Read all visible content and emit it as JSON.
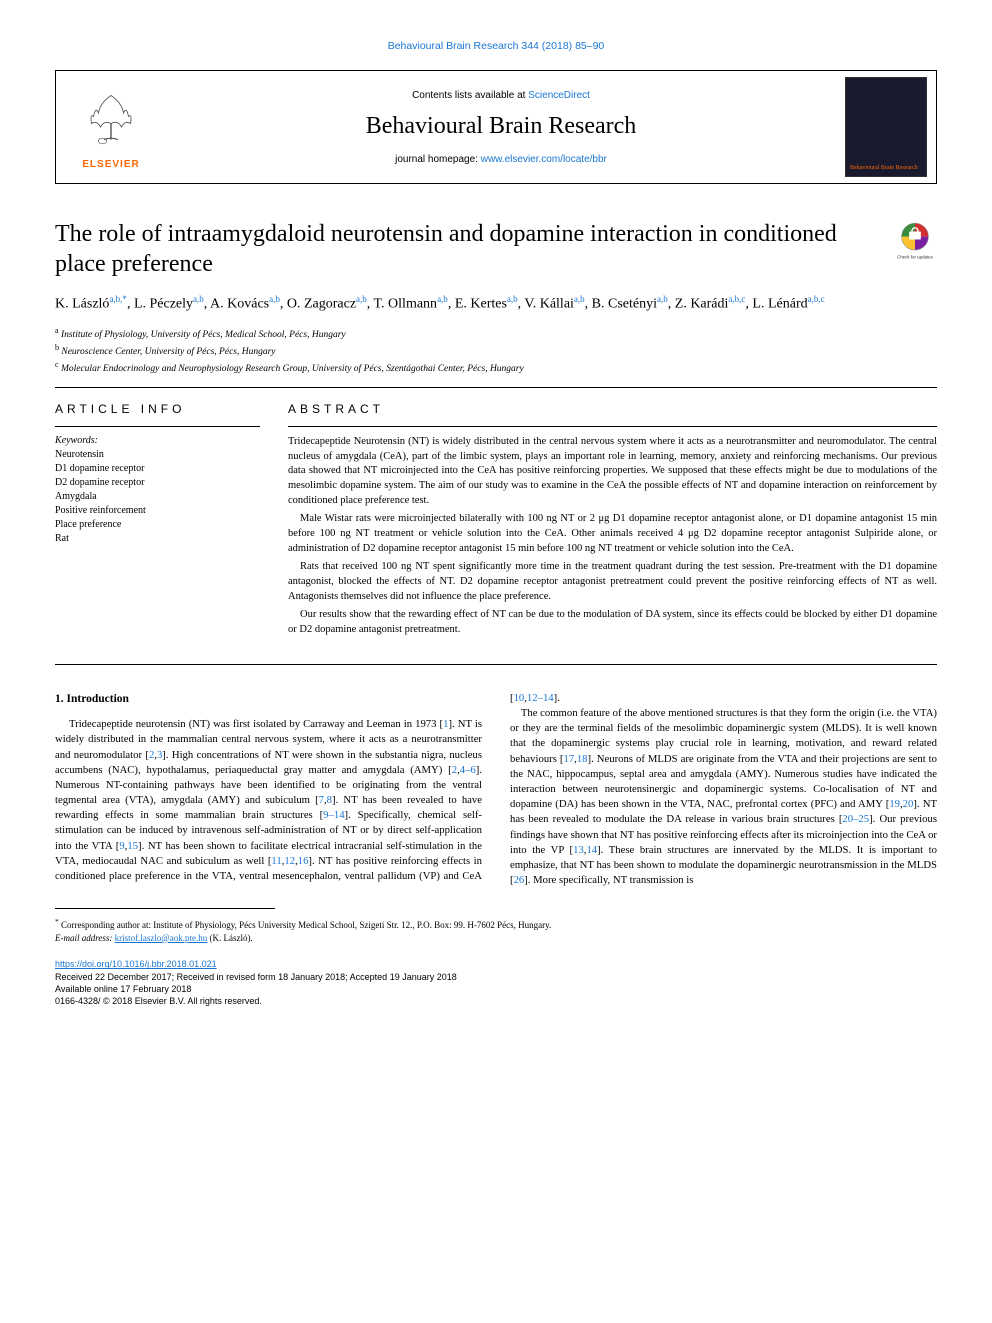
{
  "journal": {
    "top_citation": "Behavioural Brain Research 344 (2018) 85–90",
    "contents_prefix": "Contents lists available at ",
    "contents_link": "ScienceDirect",
    "name": "Behavioural Brain Research",
    "homepage_prefix": "journal homepage: ",
    "homepage_url": "www.elsevier.com/locate/bbr",
    "elsevier_label": "ELSEVIER",
    "cover_text": "Behavioural Brain Research"
  },
  "article": {
    "title": "The role of intraamygdaloid neurotensin and dopamine interaction in conditioned place preference",
    "updates_label": "Check for updates"
  },
  "authors_html": "K.&nbsp;László<sup>a,b,*</sup>, L.&nbsp;Péczely<sup>a,b</sup>, A.&nbsp;Kovács<sup>a,b</sup>, O.&nbsp;Zagoracz<sup>a,b</sup>, T.&nbsp;Ollmann<sup>a,b</sup>, E.&nbsp;Kertes<sup>a,b</sup>, V.&nbsp;Kállai<sup>a,b</sup>, B.&nbsp;Csetényi<sup>a,b</sup>, Z.&nbsp;Karádi<sup>a,b,c</sup>, L.&nbsp;Lénárd<sup>a,b,c</sup>",
  "affiliations": [
    {
      "sup": "a",
      "text": "Institute of Physiology, University of Pécs, Medical School, Pécs, Hungary"
    },
    {
      "sup": "b",
      "text": "Neuroscience Center, University of Pécs, Pécs, Hungary"
    },
    {
      "sup": "c",
      "text": "Molecular Endocrinology and Neurophysiology Research Group, University of Pécs, Szentágothai Center, Pécs, Hungary"
    }
  ],
  "info": {
    "heading": "ARTICLE INFO",
    "keywords_label": "Keywords:",
    "keywords": [
      "Neurotensin",
      "D1 dopamine receptor",
      "D2 dopamine receptor",
      "Amygdala",
      "Positive reinforcement",
      "Place preference",
      "Rat"
    ]
  },
  "abstract": {
    "heading": "ABSTRACT",
    "paragraphs": [
      "Tridecapeptide Neurotensin (NT) is widely distributed in the central nervous system where it acts as a neurotransmitter and neuromodulator. The central nucleus of amygdala (CeA), part of the limbic system, plays an important role in learning, memory, anxiety and reinforcing mechanisms. Our previous data showed that NT microinjected into the CeA has positive reinforcing properties. We supposed that these effects might be due to modulations of the mesolimbic dopamine system. The aim of our study was to examine in the CeA the possible effects of NT and dopamine interaction on reinforcement by conditioned place preference test.",
      "Male Wistar rats were microinjected bilaterally with 100 ng NT or 2 μg D1 dopamine receptor antagonist alone, or D1 dopamine antagonist 15 min before 100 ng NT treatment or vehicle solution into the CeA. Other animals received 4 μg D2 dopamine receptor antagonist Sulpiride alone, or administration of D2 dopamine receptor antagonist 15 min before 100 ng NT treatment or vehicle solution into the CeA.",
      "Rats that received 100 ng NT spent significantly more time in the treatment quadrant during the test session. Pre-treatment with the D1 dopamine antagonist, blocked the effects of NT. D2 dopamine receptor antagonist pretreatment could prevent the positive reinforcing effects of NT as well. Antagonists themselves did not influence the place preference.",
      "Our results show that the rewarding effect of NT can be due to the modulation of DA system, since its effects could be blocked by either D1 dopamine or D2 dopamine antagonist pretreatment."
    ]
  },
  "body": {
    "heading": "1. Introduction",
    "html": "Tridecapeptide neurotensin (NT) was first isolated by Carraway and Leeman in 1973 [<span class=\"cite\">1</span>]. NT is widely distributed in the mammalian central nervous system, where it acts as a neurotransmitter and neuromodulator [<span class=\"cite\">2</span>,<span class=\"cite\">3</span>]. High concentrations of NT were shown in the substantia nigra, nucleus accumbens (NAC), hypothalamus, periaqueductal gray matter and amygdala (AMY) [<span class=\"cite\">2</span>,<span class=\"cite\">4–6</span>]. Numerous NT-containing pathways have been identified to be originating from the ventral tegmental area (VTA), amygdala (AMY) and subiculum [<span class=\"cite\">7</span>,<span class=\"cite\">8</span>]. NT has been revealed to have rewarding effects in some mammalian brain structures [<span class=\"cite\">9–14</span>]. Specifically, chemical self-stimulation can be induced by intravenous self-administration of NT or by direct self-application into the VTA [<span class=\"cite\">9</span>,<span class=\"cite\">15</span>]. NT has been shown to facilitate electrical intracranial self-stimulation in the VTA, mediocaudal NAC and subiculum as well [<span class=\"cite\">11</span>,<span class=\"cite\">12</span>,<span class=\"cite\">16</span>]. NT has positive reinforcing effects in conditioned place preference in the VTA, ventral mesencephalon, ventral pallidum (VP) and CeA [<span class=\"cite\">10</span>,<span class=\"cite\">12–14</span>].<br>&nbsp;&nbsp;&nbsp;&nbsp;The common feature of the above mentioned structures is that they form the origin (i.e. the VTA) or they are the terminal fields of the mesolimbic dopaminergic system (MLDS). It is well known that the dopaminergic systems play crucial role in learning, motivation, and reward related behaviours [<span class=\"cite\">17</span>,<span class=\"cite\">18</span>]. Neurons of MLDS are originate from the VTA and their projections are sent to the NAC, hippocampus, septal area and amygdala (AMY). Numerous studies have indicated the interaction between neurotensinergic and dopaminergic systems. Co-localisation of NT and dopamine (DA) has been shown in the VTA, NAC, prefrontal cortex (PFC) and AMY [<span class=\"cite\">19</span>,<span class=\"cite\">20</span>]. NT has been revealed to modulate the DA release in various brain structures [<span class=\"cite\">20–25</span>]. Our previous findings have shown that NT has positive reinforcing effects after its microinjection into the CeA or into the VP [<span class=\"cite\">13</span>,<span class=\"cite\">14</span>]. These brain structures are innervated by the MLDS. It is important to emphasize, that NT has been shown to modulate the dopaminergic neurotransmission in the MLDS [<span class=\"cite\">26</span>]. More specifically, NT transmission is"
  },
  "correspondence": {
    "marker": "*",
    "text_prefix": "Corresponding author at: Institute of Physiology, Pécs University Medical School, Szigeti Str. 12., P.O. Box: 99. H-7602 Pécs, Hungary.",
    "email_label": "E-mail address:",
    "email": "kristof.laszlo@aok.pte.hu",
    "email_suffix": "(K. László)."
  },
  "footer": {
    "doi": "https://doi.org/10.1016/j.bbr.2018.01.021",
    "received": "Received 22 December 2017; Received in revised form 18 January 2018; Accepted 19 January 2018",
    "available": "Available online 17 February 2018",
    "copyright": "0166-4328/ © 2018 Elsevier B.V. All rights reserved."
  },
  "colors": {
    "link": "#1976d2",
    "elsevier_orange": "#ff6600",
    "text": "#000000",
    "background": "#ffffff"
  }
}
